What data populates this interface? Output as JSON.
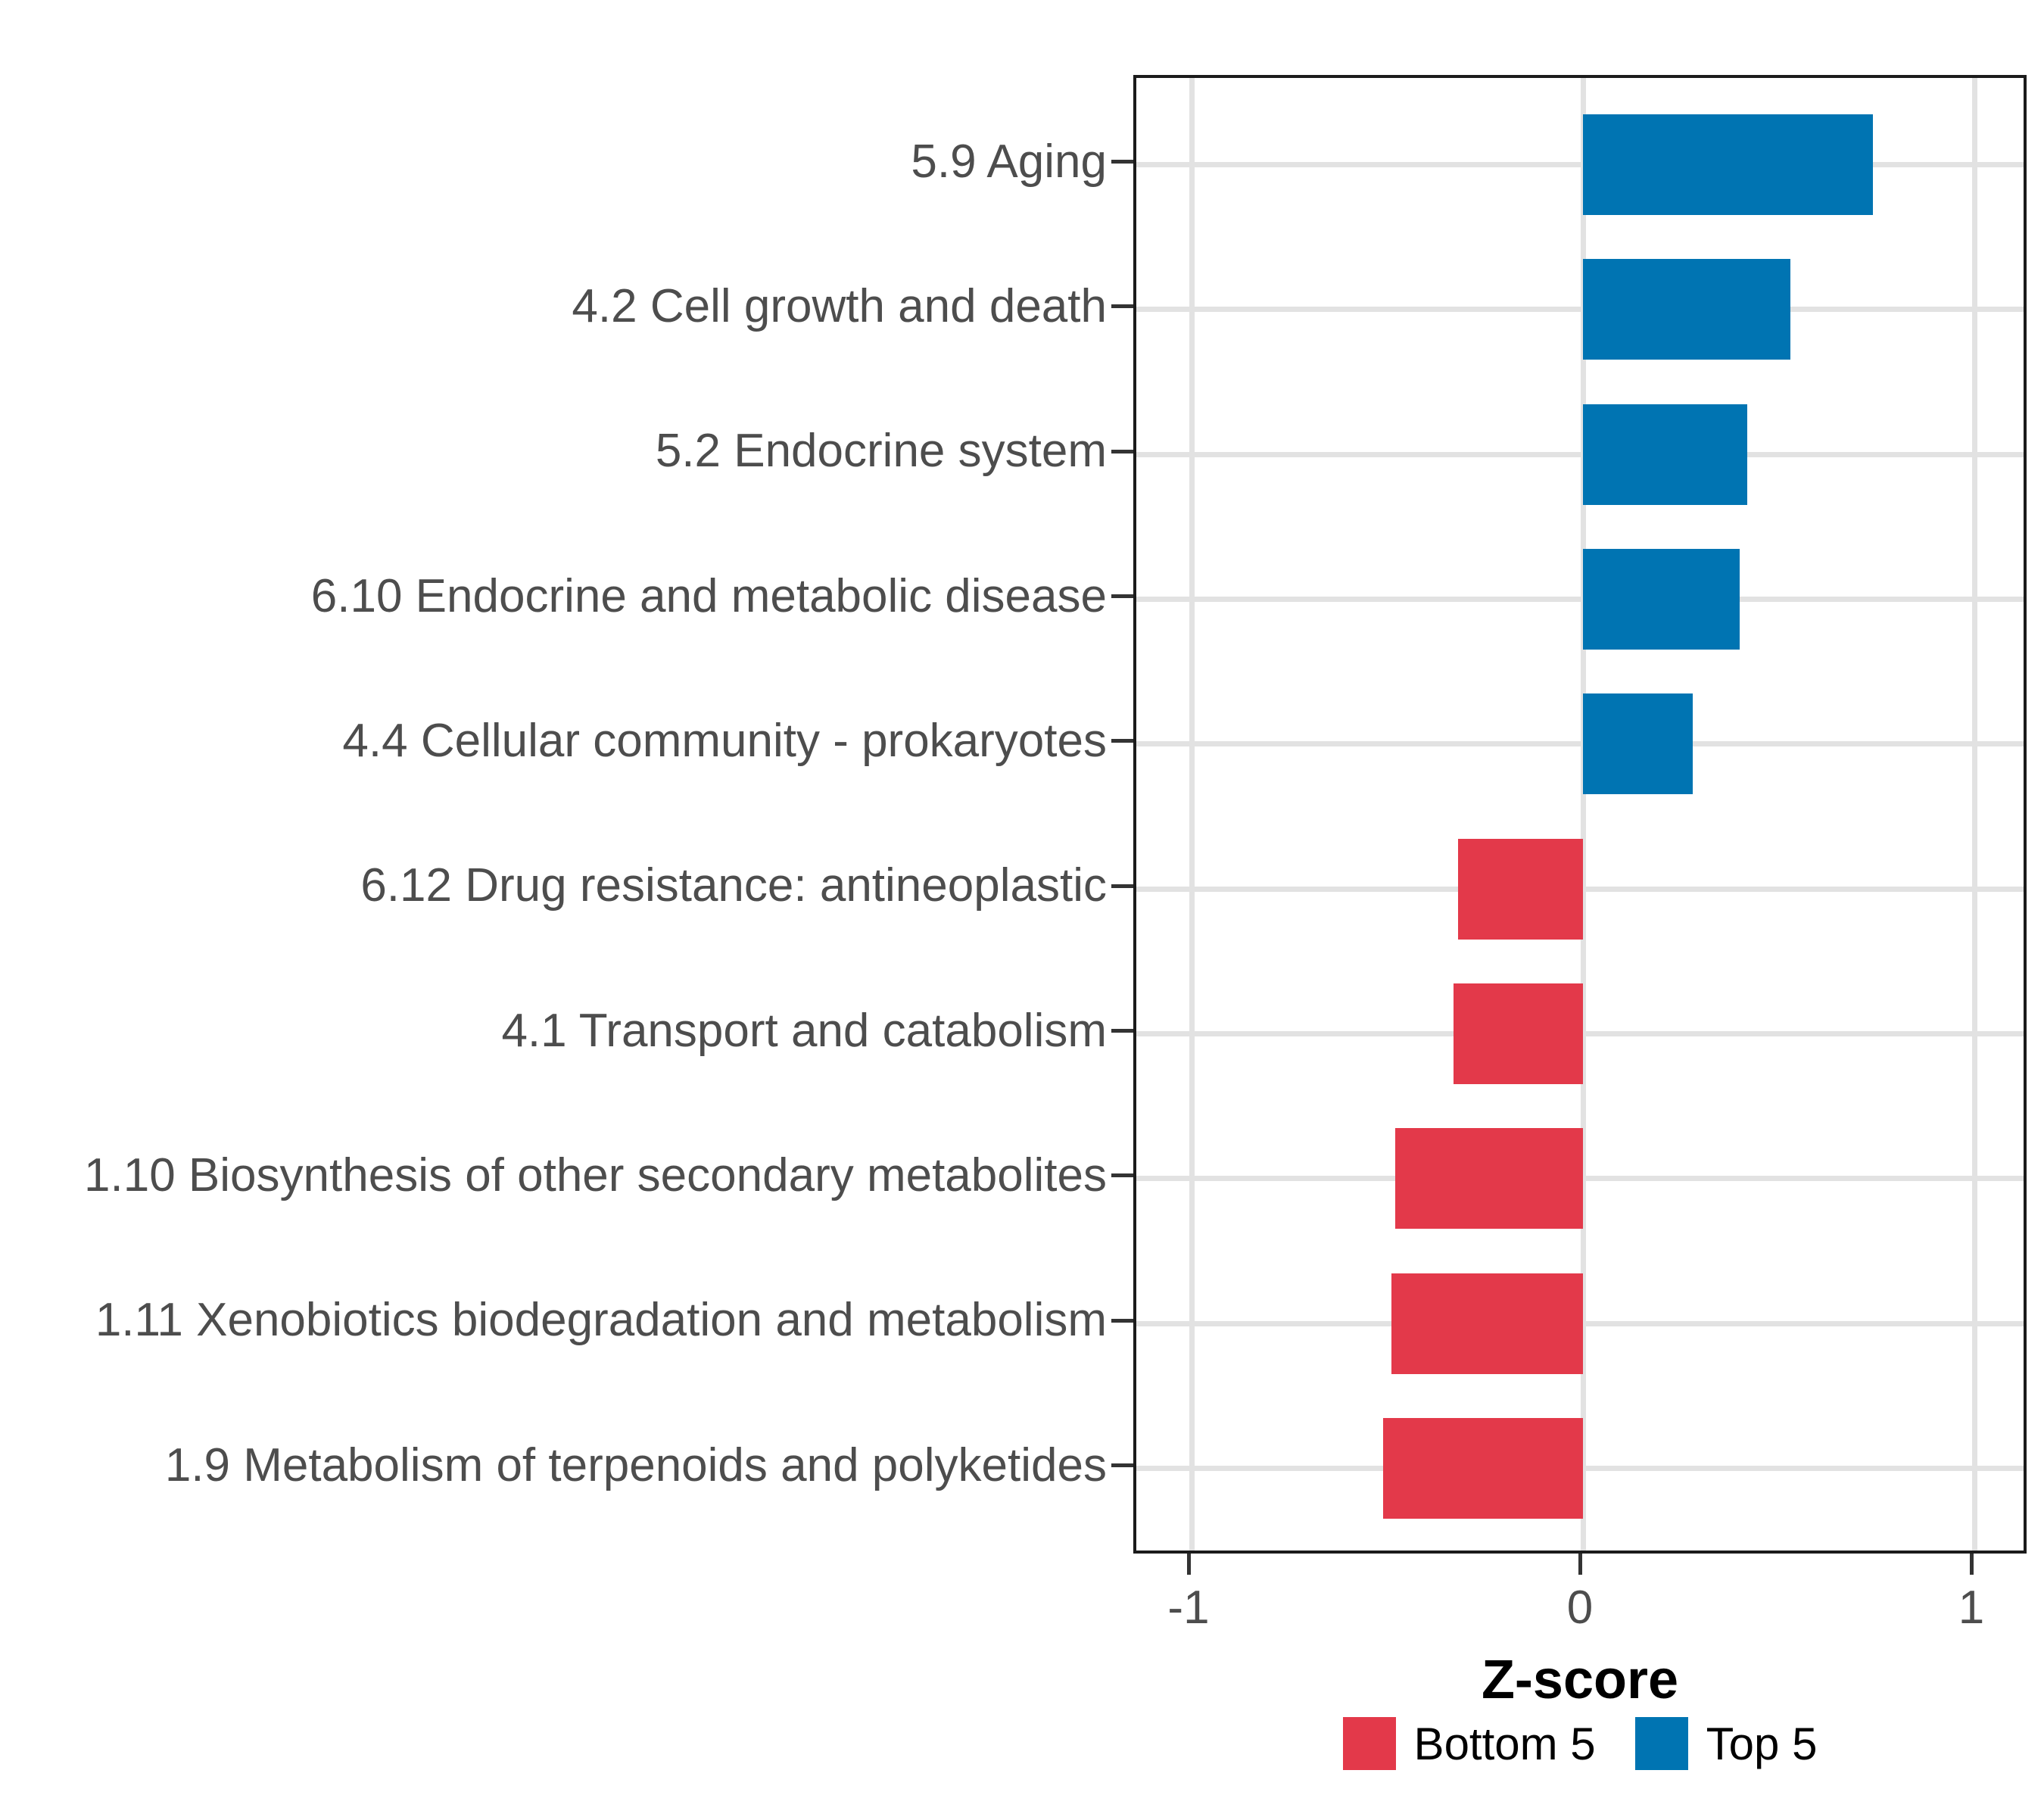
{
  "chart_data": {
    "type": "bar",
    "orientation": "horizontal",
    "title": "",
    "xlabel": "Z-score",
    "ylabel": "",
    "categories": [
      "5.9 Aging",
      "4.2 Cell growth and death",
      "5.2 Endocrine system",
      "6.10 Endocrine and metabolic disease",
      "4.4 Cellular community - prokaryotes",
      "6.12 Drug resistance: antineoplastic",
      "4.1 Transport and catabolism",
      "1.10 Biosynthesis of other secondary metabolites",
      "1.11 Xenobiotics biodegradation and metabolism",
      "1.9 Metabolism of terpenoids and polyketides"
    ],
    "values": [
      0.74,
      0.53,
      0.42,
      0.4,
      0.28,
      -0.32,
      -0.33,
      -0.48,
      -0.49,
      -0.51
    ],
    "groups": [
      "Top 5",
      "Top 5",
      "Top 5",
      "Top 5",
      "Top 5",
      "Bottom 5",
      "Bottom 5",
      "Bottom 5",
      "Bottom 5",
      "Bottom 5"
    ],
    "xlim": [
      -1.14,
      1.14
    ],
    "x_ticks": [
      -1,
      0,
      1
    ],
    "x_tick_labels": [
      "-1",
      "0",
      "1"
    ],
    "grid": "major-only",
    "legend_position": "bottom",
    "legend": [
      {
        "label": "Bottom 5",
        "color": "#E3394A"
      },
      {
        "label": "Top 5",
        "color": "#0074B2"
      }
    ],
    "colors": {
      "top5_bar": "#0074B2",
      "bottom5_bar": "#E3394A",
      "gridline": "#E2E2E2",
      "panel_border": "#1B1B1B",
      "axis_text": "#4D4D4D",
      "axis_title": "#000000"
    }
  }
}
